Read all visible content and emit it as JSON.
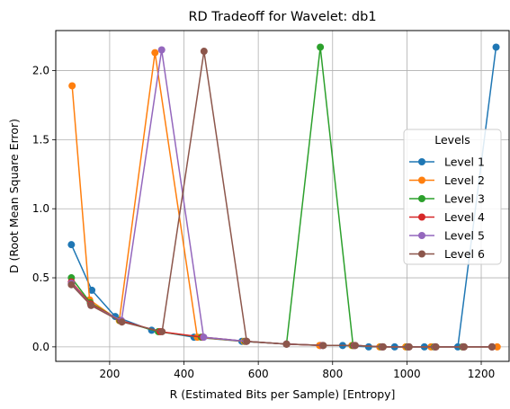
{
  "chart_data": {
    "type": "line",
    "title": "RD Tradeoff for Wavelet: db1",
    "xlabel": "R (Estimated Bits per Sample) [Entropy]",
    "ylabel": "D (Root Mean Square Error)",
    "xlim": [
      55,
      1275
    ],
    "ylim": [
      -0.105,
      2.29
    ],
    "xticks": [
      200,
      400,
      600,
      800,
      1000,
      1200
    ],
    "yticks": [
      0.0,
      0.5,
      1.0,
      1.5,
      2.0
    ],
    "grid": true,
    "legend": {
      "title": "Levels",
      "placement": "center-right"
    },
    "series": [
      {
        "name": "Level 1",
        "color": "#1f77b4",
        "points": [
          [
            97,
            0.74
          ],
          [
            152,
            0.41
          ],
          [
            215,
            0.22
          ],
          [
            313,
            0.12
          ],
          [
            427,
            0.07
          ],
          [
            556,
            0.04
          ],
          [
            676,
            0.02
          ],
          [
            767,
            0.01
          ],
          [
            827,
            0.01
          ],
          [
            897,
            0.0
          ],
          [
            967,
            0.0
          ],
          [
            1047,
            0.0
          ],
          [
            1137,
            0.0
          ],
          [
            1240,
            2.17
          ]
        ]
      },
      {
        "name": "Level 2",
        "color": "#ff7f0e",
        "points": [
          [
            99,
            1.89
          ],
          [
            146,
            0.34
          ],
          [
            226,
            0.19
          ],
          [
            322,
            2.13
          ],
          [
            436,
            0.07
          ],
          [
            562,
            0.04
          ],
          [
            676,
            0.02
          ],
          [
            765,
            0.01
          ],
          [
            852,
            0.01
          ],
          [
            927,
            0.0
          ],
          [
            997,
            0.0
          ],
          [
            1065,
            0.0
          ],
          [
            1150,
            0.0
          ],
          [
            1243,
            0.0
          ]
        ]
      },
      {
        "name": "Level 3",
        "color": "#2ca02c",
        "points": [
          [
            97,
            0.5
          ],
          [
            148,
            0.32
          ],
          [
            228,
            0.19
          ],
          [
            331,
            0.11
          ],
          [
            447,
            0.07
          ],
          [
            565,
            0.04
          ],
          [
            676,
            0.02
          ],
          [
            767,
            2.17
          ],
          [
            855,
            0.01
          ],
          [
            932,
            0.0
          ],
          [
            1002,
            0.0
          ],
          [
            1074,
            0.0
          ],
          [
            1150,
            0.0
          ],
          [
            1229,
            0.0
          ]
        ]
      },
      {
        "name": "Level 4",
        "color": "#d62728",
        "points": [
          [
            97,
            0.47
          ],
          [
            149,
            0.31
          ],
          [
            230,
            0.19
          ],
          [
            336,
            0.11
          ],
          [
            451,
            0.07
          ],
          [
            567,
            0.04
          ],
          [
            676,
            0.02
          ],
          [
            773,
            0.01
          ],
          [
            858,
            0.01
          ],
          [
            934,
            0.0
          ],
          [
            1004,
            0.0
          ],
          [
            1076,
            0.0
          ],
          [
            1152,
            0.0
          ],
          [
            1229,
            0.0
          ]
        ]
      },
      {
        "name": "Level 5",
        "color": "#9467bd",
        "points": [
          [
            97,
            0.46
          ],
          [
            150,
            0.3
          ],
          [
            232,
            0.19
          ],
          [
            340,
            2.15
          ],
          [
            453,
            0.07
          ],
          [
            568,
            0.04
          ],
          [
            676,
            0.02
          ],
          [
            774,
            0.01
          ],
          [
            860,
            0.01
          ],
          [
            935,
            0.0
          ],
          [
            1005,
            0.0
          ],
          [
            1077,
            0.0
          ],
          [
            1153,
            0.0
          ],
          [
            1229,
            0.0
          ]
        ]
      },
      {
        "name": "Level 6",
        "color": "#8c564b",
        "points": [
          [
            97,
            0.45
          ],
          [
            150,
            0.3
          ],
          [
            233,
            0.18
          ],
          [
            341,
            0.11
          ],
          [
            454,
            2.14
          ],
          [
            569,
            0.04
          ],
          [
            676,
            0.02
          ],
          [
            775,
            0.01
          ],
          [
            861,
            0.01
          ],
          [
            936,
            0.0
          ],
          [
            1006,
            0.0
          ],
          [
            1078,
            0.0
          ],
          [
            1154,
            0.0
          ],
          [
            1229,
            0.0
          ]
        ]
      }
    ]
  }
}
